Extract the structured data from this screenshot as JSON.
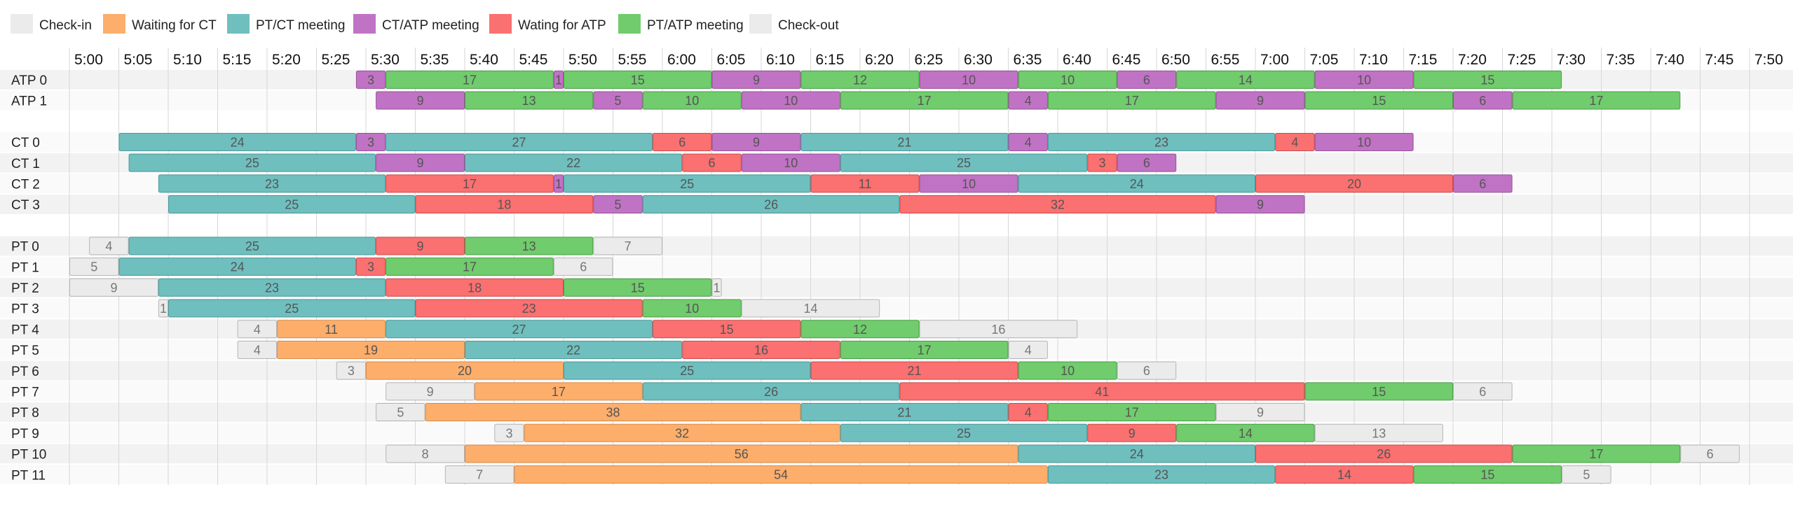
{
  "chart_data": {
    "type": "gantt",
    "time_unit": "minutes",
    "x_ticks": [
      "5:00",
      "5:05",
      "5:10",
      "5:15",
      "5:20",
      "5:25",
      "5:30",
      "5:35",
      "5:40",
      "5:45",
      "5:50",
      "5:55",
      "6:00",
      "6:05",
      "6:10",
      "6:15",
      "6:20",
      "6:25",
      "6:30",
      "6:35",
      "6:40",
      "6:45",
      "6:50",
      "6:55",
      "7:00",
      "7:05",
      "7:10",
      "7:15",
      "7:20",
      "7:25",
      "7:30",
      "7:35",
      "7:40",
      "7:45",
      "7:50"
    ],
    "legend": [
      {
        "key": "ci",
        "label": "Check-in",
        "color": "#ebebeb"
      },
      {
        "key": "wct",
        "label": "Waiting for CT",
        "color": "#fdae6b"
      },
      {
        "key": "ptct",
        "label": "PT/CT meeting",
        "color": "#6fbfbf"
      },
      {
        "key": "ctatp",
        "label": "CT/ATP meeting",
        "color": "#c073c4"
      },
      {
        "key": "watp",
        "label": "Wating for ATP",
        "color": "#fb7070"
      },
      {
        "key": "ptatp",
        "label": "PT/ATP meeting",
        "color": "#70cc6c"
      },
      {
        "key": "co",
        "label": "Check-out",
        "color": "#ebebeb"
      }
    ],
    "rows": [
      {
        "label": "ATP 0",
        "segments": [
          [
            "5:29",
            "ctatp",
            3
          ],
          [
            "5:32",
            "ptatp",
            17
          ],
          [
            "5:49",
            "ctatp",
            1
          ],
          [
            "5:50",
            "ptatp",
            15
          ],
          [
            "6:05",
            "ctatp",
            9
          ],
          [
            "6:14",
            "ptatp",
            12
          ],
          [
            "6:26",
            "ctatp",
            10
          ],
          [
            "6:36",
            "ptatp",
            10
          ],
          [
            "6:46",
            "ctatp",
            6
          ],
          [
            "6:52",
            "ptatp",
            14
          ],
          [
            "7:06",
            "ctatp",
            10
          ],
          [
            "7:16",
            "ptatp",
            15
          ]
        ]
      },
      {
        "label": "ATP 1",
        "segments": [
          [
            "5:31",
            "ctatp",
            9
          ],
          [
            "5:40",
            "ptatp",
            13
          ],
          [
            "5:53",
            "ctatp",
            5
          ],
          [
            "5:58",
            "ptatp",
            10
          ],
          [
            "6:08",
            "ctatp",
            10
          ],
          [
            "6:18",
            "ptatp",
            17
          ],
          [
            "6:35",
            "ctatp",
            4
          ],
          [
            "6:39",
            "ptatp",
            17
          ],
          [
            "6:56",
            "ctatp",
            9
          ],
          [
            "7:05",
            "ptatp",
            15
          ],
          [
            "7:20",
            "ctatp",
            6
          ],
          [
            "7:26",
            "ptatp",
            17
          ]
        ]
      },
      {
        "label": "",
        "spacer": true,
        "segments": []
      },
      {
        "label": "CT 0",
        "segments": [
          [
            "5:05",
            "ptct",
            24
          ],
          [
            "5:29",
            "ctatp",
            3
          ],
          [
            "5:32",
            "ptct",
            27
          ],
          [
            "5:59",
            "watp",
            6
          ],
          [
            "6:05",
            "ctatp",
            9
          ],
          [
            "6:14",
            "ptct",
            21
          ],
          [
            "6:35",
            "ctatp",
            4
          ],
          [
            "6:39",
            "ptct",
            23
          ],
          [
            "7:02",
            "watp",
            4
          ],
          [
            "7:06",
            "ctatp",
            10
          ]
        ]
      },
      {
        "label": "CT 1",
        "segments": [
          [
            "5:06",
            "ptct",
            25
          ],
          [
            "5:31",
            "ctatp",
            9
          ],
          [
            "5:40",
            "ptct",
            22
          ],
          [
            "6:02",
            "watp",
            6
          ],
          [
            "6:08",
            "ctatp",
            10
          ],
          [
            "6:18",
            "ptct",
            25
          ],
          [
            "6:43",
            "watp",
            3
          ],
          [
            "6:46",
            "ctatp",
            6
          ]
        ]
      },
      {
        "label": "CT 2",
        "segments": [
          [
            "5:09",
            "ptct",
            23
          ],
          [
            "5:32",
            "watp",
            17
          ],
          [
            "5:49",
            "ctatp",
            1
          ],
          [
            "5:50",
            "ptct",
            25
          ],
          [
            "6:15",
            "watp",
            11
          ],
          [
            "6:26",
            "ctatp",
            10
          ],
          [
            "6:36",
            "ptct",
            24
          ],
          [
            "7:00",
            "watp",
            20
          ],
          [
            "7:20",
            "ctatp",
            6
          ]
        ]
      },
      {
        "label": "CT 3",
        "segments": [
          [
            "5:10",
            "ptct",
            25
          ],
          [
            "5:35",
            "watp",
            18
          ],
          [
            "5:53",
            "ctatp",
            5
          ],
          [
            "5:58",
            "ptct",
            26
          ],
          [
            "6:24",
            "watp",
            32
          ],
          [
            "6:56",
            "ctatp",
            9
          ]
        ]
      },
      {
        "label": "",
        "spacer": true,
        "segments": []
      },
      {
        "label": "PT 0",
        "segments": [
          [
            "5:02",
            "ci",
            4
          ],
          [
            "5:06",
            "ptct",
            25
          ],
          [
            "5:31",
            "watp",
            9
          ],
          [
            "5:40",
            "ptatp",
            13
          ],
          [
            "5:53",
            "co",
            7
          ]
        ]
      },
      {
        "label": "PT 1",
        "segments": [
          [
            "5:00",
            "ci",
            5
          ],
          [
            "5:05",
            "ptct",
            24
          ],
          [
            "5:29",
            "watp",
            3
          ],
          [
            "5:32",
            "ptatp",
            17
          ],
          [
            "5:49",
            "co",
            6
          ]
        ]
      },
      {
        "label": "PT 2",
        "segments": [
          [
            "5:00",
            "ci",
            9
          ],
          [
            "5:09",
            "ptct",
            23
          ],
          [
            "5:32",
            "watp",
            18
          ],
          [
            "5:50",
            "ptatp",
            15
          ],
          [
            "6:05",
            "co",
            1
          ]
        ]
      },
      {
        "label": "PT 3",
        "segments": [
          [
            "5:09",
            "ci",
            1
          ],
          [
            "5:10",
            "ptct",
            25
          ],
          [
            "5:35",
            "watp",
            23
          ],
          [
            "5:58",
            "ptatp",
            10
          ],
          [
            "6:08",
            "co",
            14
          ]
        ]
      },
      {
        "label": "PT 4",
        "segments": [
          [
            "5:17",
            "ci",
            4
          ],
          [
            "5:21",
            "wct",
            11
          ],
          [
            "5:32",
            "ptct",
            27
          ],
          [
            "5:59",
            "watp",
            15
          ],
          [
            "6:14",
            "ptatp",
            12
          ],
          [
            "6:26",
            "co",
            16
          ]
        ]
      },
      {
        "label": "PT 5",
        "segments": [
          [
            "5:17",
            "ci",
            4
          ],
          [
            "5:21",
            "wct",
            19
          ],
          [
            "5:40",
            "ptct",
            22
          ],
          [
            "6:02",
            "watp",
            16
          ],
          [
            "6:18",
            "ptatp",
            17
          ],
          [
            "6:35",
            "co",
            4
          ]
        ]
      },
      {
        "label": "PT 6",
        "segments": [
          [
            "5:27",
            "ci",
            3
          ],
          [
            "5:30",
            "wct",
            20
          ],
          [
            "5:50",
            "ptct",
            25
          ],
          [
            "6:15",
            "watp",
            21
          ],
          [
            "6:36",
            "ptatp",
            10
          ],
          [
            "6:46",
            "co",
            6
          ]
        ]
      },
      {
        "label": "PT 7",
        "segments": [
          [
            "5:32",
            "ci",
            9
          ],
          [
            "5:41",
            "wct",
            17
          ],
          [
            "5:58",
            "ptct",
            26
          ],
          [
            "6:24",
            "watp",
            41
          ],
          [
            "7:05",
            "ptatp",
            15
          ],
          [
            "7:20",
            "co",
            6
          ]
        ]
      },
      {
        "label": "PT 8",
        "segments": [
          [
            "5:31",
            "ci",
            5
          ],
          [
            "5:36",
            "wct",
            38
          ],
          [
            "6:14",
            "ptct",
            21
          ],
          [
            "6:35",
            "watp",
            4
          ],
          [
            "6:39",
            "ptatp",
            17
          ],
          [
            "6:56",
            "co",
            9
          ]
        ]
      },
      {
        "label": "PT 9",
        "segments": [
          [
            "5:43",
            "ci",
            3
          ],
          [
            "5:46",
            "wct",
            32
          ],
          [
            "6:18",
            "ptct",
            25
          ],
          [
            "6:43",
            "watp",
            9
          ],
          [
            "6:52",
            "ptatp",
            14
          ],
          [
            "7:06",
            "co",
            13
          ]
        ]
      },
      {
        "label": "PT 10",
        "segments": [
          [
            "5:32",
            "ci",
            8
          ],
          [
            "5:40",
            "wct",
            56
          ],
          [
            "6:36",
            "ptct",
            24
          ],
          [
            "7:00",
            "watp",
            26
          ],
          [
            "7:26",
            "ptatp",
            17
          ],
          [
            "7:43",
            "co",
            6
          ]
        ]
      },
      {
        "label": "PT 11",
        "segments": [
          [
            "5:38",
            "ci",
            7
          ],
          [
            "5:45",
            "wct",
            54
          ],
          [
            "6:39",
            "ptct",
            23
          ],
          [
            "7:02",
            "watp",
            14
          ],
          [
            "7:16",
            "ptatp",
            15
          ],
          [
            "7:31",
            "co",
            5
          ]
        ]
      }
    ]
  }
}
